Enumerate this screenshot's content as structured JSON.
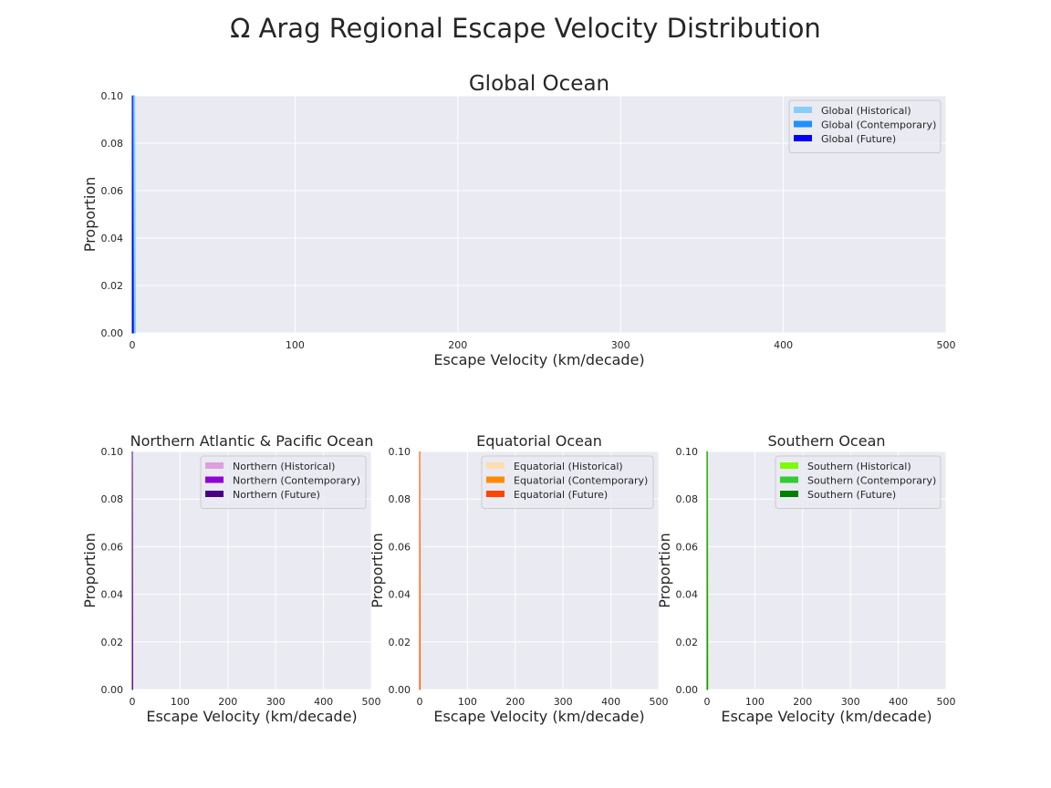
{
  "figure": {
    "title": "Ω Arag Regional Escape Velocity Distribution"
  },
  "chart_data": [
    {
      "type": "area",
      "title": "Global Ocean",
      "xlabel": "Escape Velocity (km/decade)",
      "ylabel": "Proportion",
      "xlim": [
        0,
        500
      ],
      "ylim": [
        0,
        0.1
      ],
      "xticks": [
        "0",
        "100",
        "200",
        "300",
        "400",
        "500"
      ],
      "yticks": [
        "0.00",
        "0.02",
        "0.04",
        "0.06",
        "0.08",
        "0.10"
      ],
      "grid": true,
      "legend_position": "top-right",
      "series": [
        {
          "name": "Global (Historical)",
          "color": "#87CEFA",
          "x": [
            0,
            0.5,
            1,
            1.5,
            2
          ],
          "y": [
            0.1,
            0.1,
            0.1,
            0.1,
            0
          ]
        },
        {
          "name": "Global (Contemporary)",
          "color": "#1E90FF",
          "x": [
            0,
            0.5,
            1
          ],
          "y": [
            0.1,
            0.1,
            0
          ]
        },
        {
          "name": "Global (Future)",
          "color": "#0000FF",
          "x": [
            0,
            0.5
          ],
          "y": [
            0.1,
            0
          ]
        }
      ]
    },
    {
      "type": "area",
      "title": "Northern Atlantic & Pacific Ocean",
      "xlabel": "Escape Velocity (km/decade)",
      "ylabel": "Proportion",
      "xlim": [
        0,
        500
      ],
      "ylim": [
        0,
        0.1
      ],
      "xticks": [
        "0",
        "100",
        "200",
        "300",
        "400",
        "500"
      ],
      "yticks": [
        "0.00",
        "0.02",
        "0.04",
        "0.06",
        "0.08",
        "0.10"
      ],
      "grid": true,
      "legend_position": "top-right",
      "series": [
        {
          "name": "Northern (Historical)",
          "color": "#DDA0DD",
          "x": [
            0,
            0.5
          ],
          "y": [
            0.1,
            0
          ]
        },
        {
          "name": "Northern (Contemporary)",
          "color": "#9400D3",
          "x": [
            0,
            0.5
          ],
          "y": [
            0.1,
            0
          ]
        },
        {
          "name": "Northern (Future)",
          "color": "#4B0082",
          "x": [
            0,
            0.5
          ],
          "y": [
            0.1,
            0
          ]
        }
      ]
    },
    {
      "type": "area",
      "title": "Equatorial Ocean",
      "xlabel": "Escape Velocity (km/decade)",
      "ylabel": "Proportion",
      "xlim": [
        0,
        500
      ],
      "ylim": [
        0,
        0.1
      ],
      "xticks": [
        "0",
        "100",
        "200",
        "300",
        "400",
        "500"
      ],
      "yticks": [
        "0.00",
        "0.02",
        "0.04",
        "0.06",
        "0.08",
        "0.10"
      ],
      "grid": true,
      "legend_position": "top-right",
      "series": [
        {
          "name": "Equatorial (Historical)",
          "color": "#FFDEAD",
          "x": [
            0,
            1,
            2
          ],
          "y": [
            0.1,
            0.1,
            0
          ]
        },
        {
          "name": "Equatorial (Contemporary)",
          "color": "#FF8C00",
          "x": [
            0,
            0.5
          ],
          "y": [
            0.1,
            0
          ]
        },
        {
          "name": "Equatorial (Future)",
          "color": "#FF4500",
          "x": [
            0,
            0.5
          ],
          "y": [
            0.1,
            0
          ]
        }
      ]
    },
    {
      "type": "area",
      "title": "Southern Ocean",
      "xlabel": "Escape Velocity (km/decade)",
      "ylabel": "Proportion",
      "xlim": [
        0,
        500
      ],
      "ylim": [
        0,
        0.1
      ],
      "xticks": [
        "0",
        "100",
        "200",
        "300",
        "400",
        "500"
      ],
      "yticks": [
        "0.00",
        "0.02",
        "0.04",
        "0.06",
        "0.08",
        "0.10"
      ],
      "grid": true,
      "legend_position": "top-right",
      "series": [
        {
          "name": "Southern (Historical)",
          "color": "#7CFC00",
          "x": [
            0,
            1,
            2
          ],
          "y": [
            0.1,
            0.1,
            0
          ]
        },
        {
          "name": "Southern (Contemporary)",
          "color": "#32CD32",
          "x": [
            0,
            0.5
          ],
          "y": [
            0.1,
            0
          ]
        },
        {
          "name": "Southern (Future)",
          "color": "#008000",
          "x": [
            0,
            0.5
          ],
          "y": [
            0.1,
            0
          ]
        }
      ]
    }
  ]
}
